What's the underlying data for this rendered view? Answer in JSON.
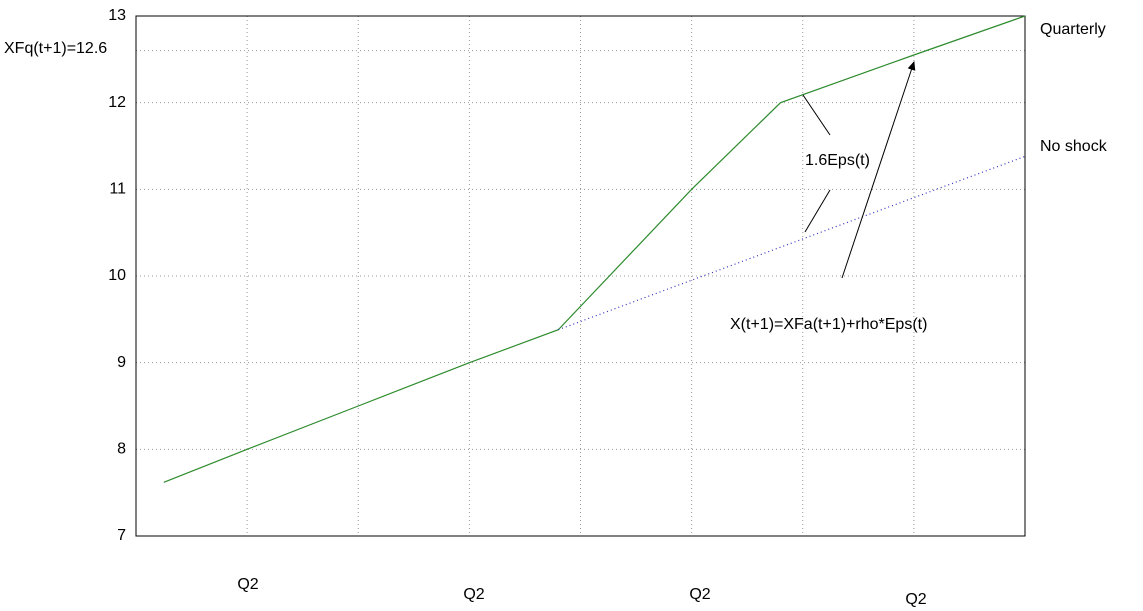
{
  "chart_data": {
    "type": "line",
    "series": [
      {
        "name": "Quarterly",
        "color": "#2e8b2e",
        "style": "solid",
        "x": [
          0.25,
          1,
          2,
          3,
          3.8,
          5,
          5.8,
          7,
          8
        ],
        "values": [
          7.62,
          8,
          8.5,
          9,
          9.38,
          11,
          12,
          12.55,
          13
        ]
      },
      {
        "name": "No shock",
        "color": "#3030c0",
        "style": "dotted",
        "x": [
          3.8,
          8
        ],
        "values": [
          9.38,
          11.38
        ]
      }
    ],
    "xlim": [
      0,
      8
    ],
    "xticks": [
      1,
      2,
      3,
      4,
      5,
      6,
      7
    ],
    "ylim": [
      7,
      13
    ],
    "yticks": [
      7,
      8,
      9,
      10,
      11,
      12,
      13
    ],
    "grid": true,
    "reference_line": {
      "text": "XFq(t+1)=12.6",
      "value": 12.6
    },
    "annotations": [
      "1.6Eps(t)",
      "X(t+1)=XFa(t+1)+rho*Eps(t)"
    ],
    "period_labels": [
      "Q2",
      "Q2",
      "Q2",
      "Q2"
    ]
  }
}
